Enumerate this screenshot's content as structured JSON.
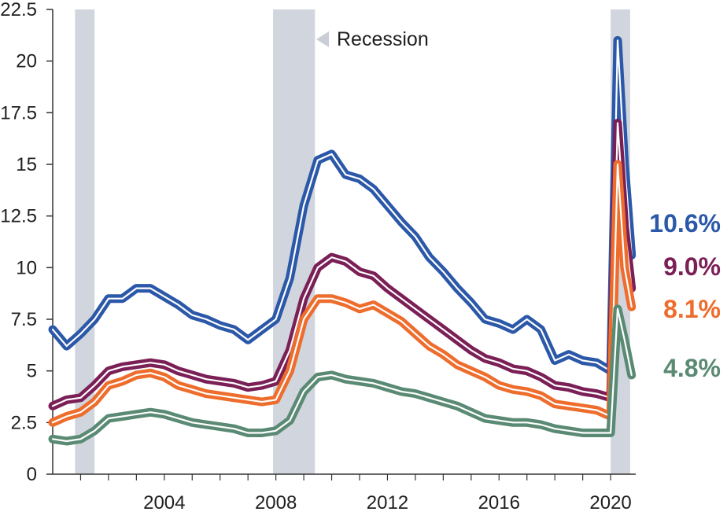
{
  "chart_data": {
    "type": "line",
    "title": "",
    "xlabel": "",
    "ylabel": "",
    "xlim": [
      2000.0,
      2020.9
    ],
    "ylim": [
      0,
      22.5
    ],
    "y_ticks": [
      "0",
      "2.5",
      "5",
      "7.5",
      "10",
      "12.5",
      "15",
      "17.5",
      "20",
      "22.5"
    ],
    "x_ticks": [
      "2004",
      "2008",
      "2012",
      "2016",
      "2020"
    ],
    "grid": false,
    "legend": {
      "label": "Recession",
      "placement": "top-center"
    },
    "recessions": [
      [
        2000.8,
        2001.5
      ],
      [
        2007.9,
        2009.4
      ],
      [
        2020.0,
        2020.7
      ]
    ],
    "series": [
      {
        "color": "#2b58a8",
        "end_label": "10.6%",
        "x": [
          2000.0,
          2000.5,
          2001.0,
          2001.5,
          2002.0,
          2002.5,
          2003.0,
          2003.5,
          2004.0,
          2004.5,
          2005.0,
          2005.5,
          2006.0,
          2006.5,
          2007.0,
          2007.5,
          2008.0,
          2008.5,
          2009.0,
          2009.5,
          2010.0,
          2010.5,
          2011.0,
          2011.5,
          2012.0,
          2012.5,
          2013.0,
          2013.5,
          2014.0,
          2014.5,
          2015.0,
          2015.5,
          2016.0,
          2016.5,
          2017.0,
          2017.5,
          2018.0,
          2018.5,
          2019.0,
          2019.5,
          2020.0,
          2020.25,
          2020.5,
          2020.75
        ],
        "y": [
          7.0,
          6.2,
          6.8,
          7.5,
          8.5,
          8.5,
          9.0,
          9.0,
          8.6,
          8.2,
          7.7,
          7.5,
          7.2,
          7.0,
          6.5,
          7.0,
          7.5,
          9.5,
          13.0,
          15.2,
          15.5,
          14.5,
          14.3,
          13.8,
          13.0,
          12.2,
          11.5,
          10.5,
          9.8,
          9.0,
          8.3,
          7.5,
          7.3,
          7.0,
          7.5,
          7.0,
          5.5,
          5.8,
          5.5,
          5.4,
          5.0,
          21.0,
          15.0,
          10.6
        ]
      },
      {
        "color": "#7b1f57",
        "end_label": "9.0%",
        "x": [
          2000.0,
          2000.5,
          2001.0,
          2001.5,
          2002.0,
          2002.5,
          2003.0,
          2003.5,
          2004.0,
          2004.5,
          2005.0,
          2005.5,
          2006.0,
          2006.5,
          2007.0,
          2007.5,
          2008.0,
          2008.5,
          2009.0,
          2009.5,
          2010.0,
          2010.5,
          2011.0,
          2011.5,
          2012.0,
          2012.5,
          2013.0,
          2013.5,
          2014.0,
          2014.5,
          2015.0,
          2015.5,
          2016.0,
          2016.5,
          2017.0,
          2017.5,
          2018.0,
          2018.5,
          2019.0,
          2019.5,
          2020.0,
          2020.25,
          2020.5,
          2020.75
        ],
        "y": [
          3.3,
          3.6,
          3.7,
          4.3,
          5.0,
          5.2,
          5.3,
          5.4,
          5.3,
          5.0,
          4.8,
          4.6,
          4.5,
          4.4,
          4.2,
          4.3,
          4.5,
          6.0,
          8.5,
          10.0,
          10.5,
          10.3,
          9.8,
          9.6,
          9.0,
          8.5,
          8.0,
          7.5,
          7.0,
          6.5,
          6.0,
          5.6,
          5.4,
          5.1,
          5.0,
          4.7,
          4.3,
          4.2,
          4.0,
          3.9,
          3.7,
          17.0,
          12.0,
          9.0
        ]
      },
      {
        "color": "#ee6c2c",
        "end_label": "8.1%",
        "x": [
          2000.0,
          2000.5,
          2001.0,
          2001.5,
          2002.0,
          2002.5,
          2003.0,
          2003.5,
          2004.0,
          2004.5,
          2005.0,
          2005.5,
          2006.0,
          2006.5,
          2007.0,
          2007.5,
          2008.0,
          2008.5,
          2009.0,
          2009.5,
          2010.0,
          2010.5,
          2011.0,
          2011.5,
          2012.0,
          2012.5,
          2013.0,
          2013.5,
          2014.0,
          2014.5,
          2015.0,
          2015.5,
          2016.0,
          2016.5,
          2017.0,
          2017.5,
          2018.0,
          2018.5,
          2019.0,
          2019.5,
          2020.0,
          2020.25,
          2020.5,
          2020.75
        ],
        "y": [
          2.5,
          2.8,
          3.0,
          3.5,
          4.3,
          4.5,
          4.8,
          4.9,
          4.7,
          4.3,
          4.1,
          3.9,
          3.8,
          3.7,
          3.6,
          3.5,
          3.6,
          5.0,
          7.5,
          8.5,
          8.5,
          8.3,
          8.0,
          8.2,
          7.8,
          7.4,
          6.8,
          6.2,
          5.8,
          5.3,
          5.0,
          4.7,
          4.3,
          4.1,
          4.0,
          3.8,
          3.4,
          3.3,
          3.2,
          3.1,
          2.8,
          15.0,
          10.0,
          8.1
        ]
      },
      {
        "color": "#5a8a74",
        "end_label": "4.8%",
        "x": [
          2000.0,
          2000.5,
          2001.0,
          2001.5,
          2002.0,
          2002.5,
          2003.0,
          2003.5,
          2004.0,
          2004.5,
          2005.0,
          2005.5,
          2006.0,
          2006.5,
          2007.0,
          2007.5,
          2008.0,
          2008.5,
          2009.0,
          2009.5,
          2010.0,
          2010.5,
          2011.0,
          2011.5,
          2012.0,
          2012.5,
          2013.0,
          2013.5,
          2014.0,
          2014.5,
          2015.0,
          2015.5,
          2016.0,
          2016.5,
          2017.0,
          2017.5,
          2018.0,
          2018.5,
          2019.0,
          2019.5,
          2020.0,
          2020.25,
          2020.5,
          2020.75
        ],
        "y": [
          1.7,
          1.6,
          1.7,
          2.1,
          2.7,
          2.8,
          2.9,
          3.0,
          2.9,
          2.7,
          2.5,
          2.4,
          2.3,
          2.2,
          2.0,
          2.0,
          2.1,
          2.6,
          4.0,
          4.7,
          4.8,
          4.6,
          4.5,
          4.4,
          4.2,
          4.0,
          3.9,
          3.7,
          3.5,
          3.3,
          3.0,
          2.7,
          2.6,
          2.5,
          2.5,
          2.4,
          2.2,
          2.1,
          2.0,
          2.0,
          2.0,
          8.0,
          6.5,
          4.8
        ]
      }
    ]
  }
}
